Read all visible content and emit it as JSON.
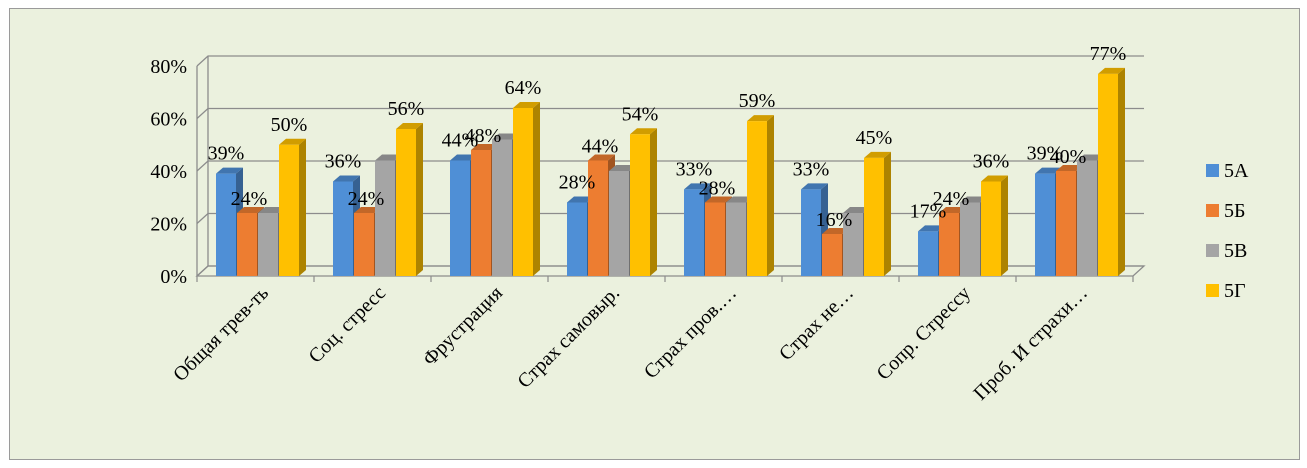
{
  "chart_data": {
    "type": "bar",
    "title": "",
    "xlabel": "",
    "ylabel": "",
    "ylim": [
      0,
      80
    ],
    "yticks": [
      "0%",
      "20%",
      "40%",
      "60%",
      "80%"
    ],
    "grid": true,
    "legend_position": "right",
    "categories": [
      "Общая трев-ть",
      "Соц. стресс",
      "Фрустрация",
      "Страх самовыр.",
      "Страх пров.…",
      "Страх не…",
      "Сопр. Стрессу",
      "Проб. И страхи…"
    ],
    "series": [
      {
        "name": "5А",
        "color": "#4f8fd6",
        "values": [
          39,
          36,
          44,
          28,
          33,
          33,
          17,
          39
        ],
        "labels": [
          "39%",
          "36%",
          "44%",
          "28%",
          "33%",
          "33%",
          "17%",
          "39%"
        ]
      },
      {
        "name": "5Б",
        "color": "#ed7d31",
        "values": [
          24,
          24,
          48,
          44,
          28,
          16,
          24,
          40
        ],
        "labels": [
          "24%",
          "24%",
          "48%",
          "44%",
          "28%",
          "16%",
          "24%",
          "40%"
        ]
      },
      {
        "name": "5В",
        "color": "#a5a5a5",
        "values": [
          24,
          44,
          52,
          40,
          28,
          24,
          28,
          44
        ],
        "labels": [
          "",
          "",
          "",
          "",
          "",
          "",
          "",
          ""
        ]
      },
      {
        "name": "5Г",
        "color": "#ffc000",
        "values": [
          50,
          56,
          64,
          54,
          59,
          45,
          36,
          77
        ],
        "labels": [
          "50%",
          "56%",
          "64%",
          "54%",
          "59%",
          "45%",
          "36%",
          "77%"
        ]
      }
    ]
  }
}
